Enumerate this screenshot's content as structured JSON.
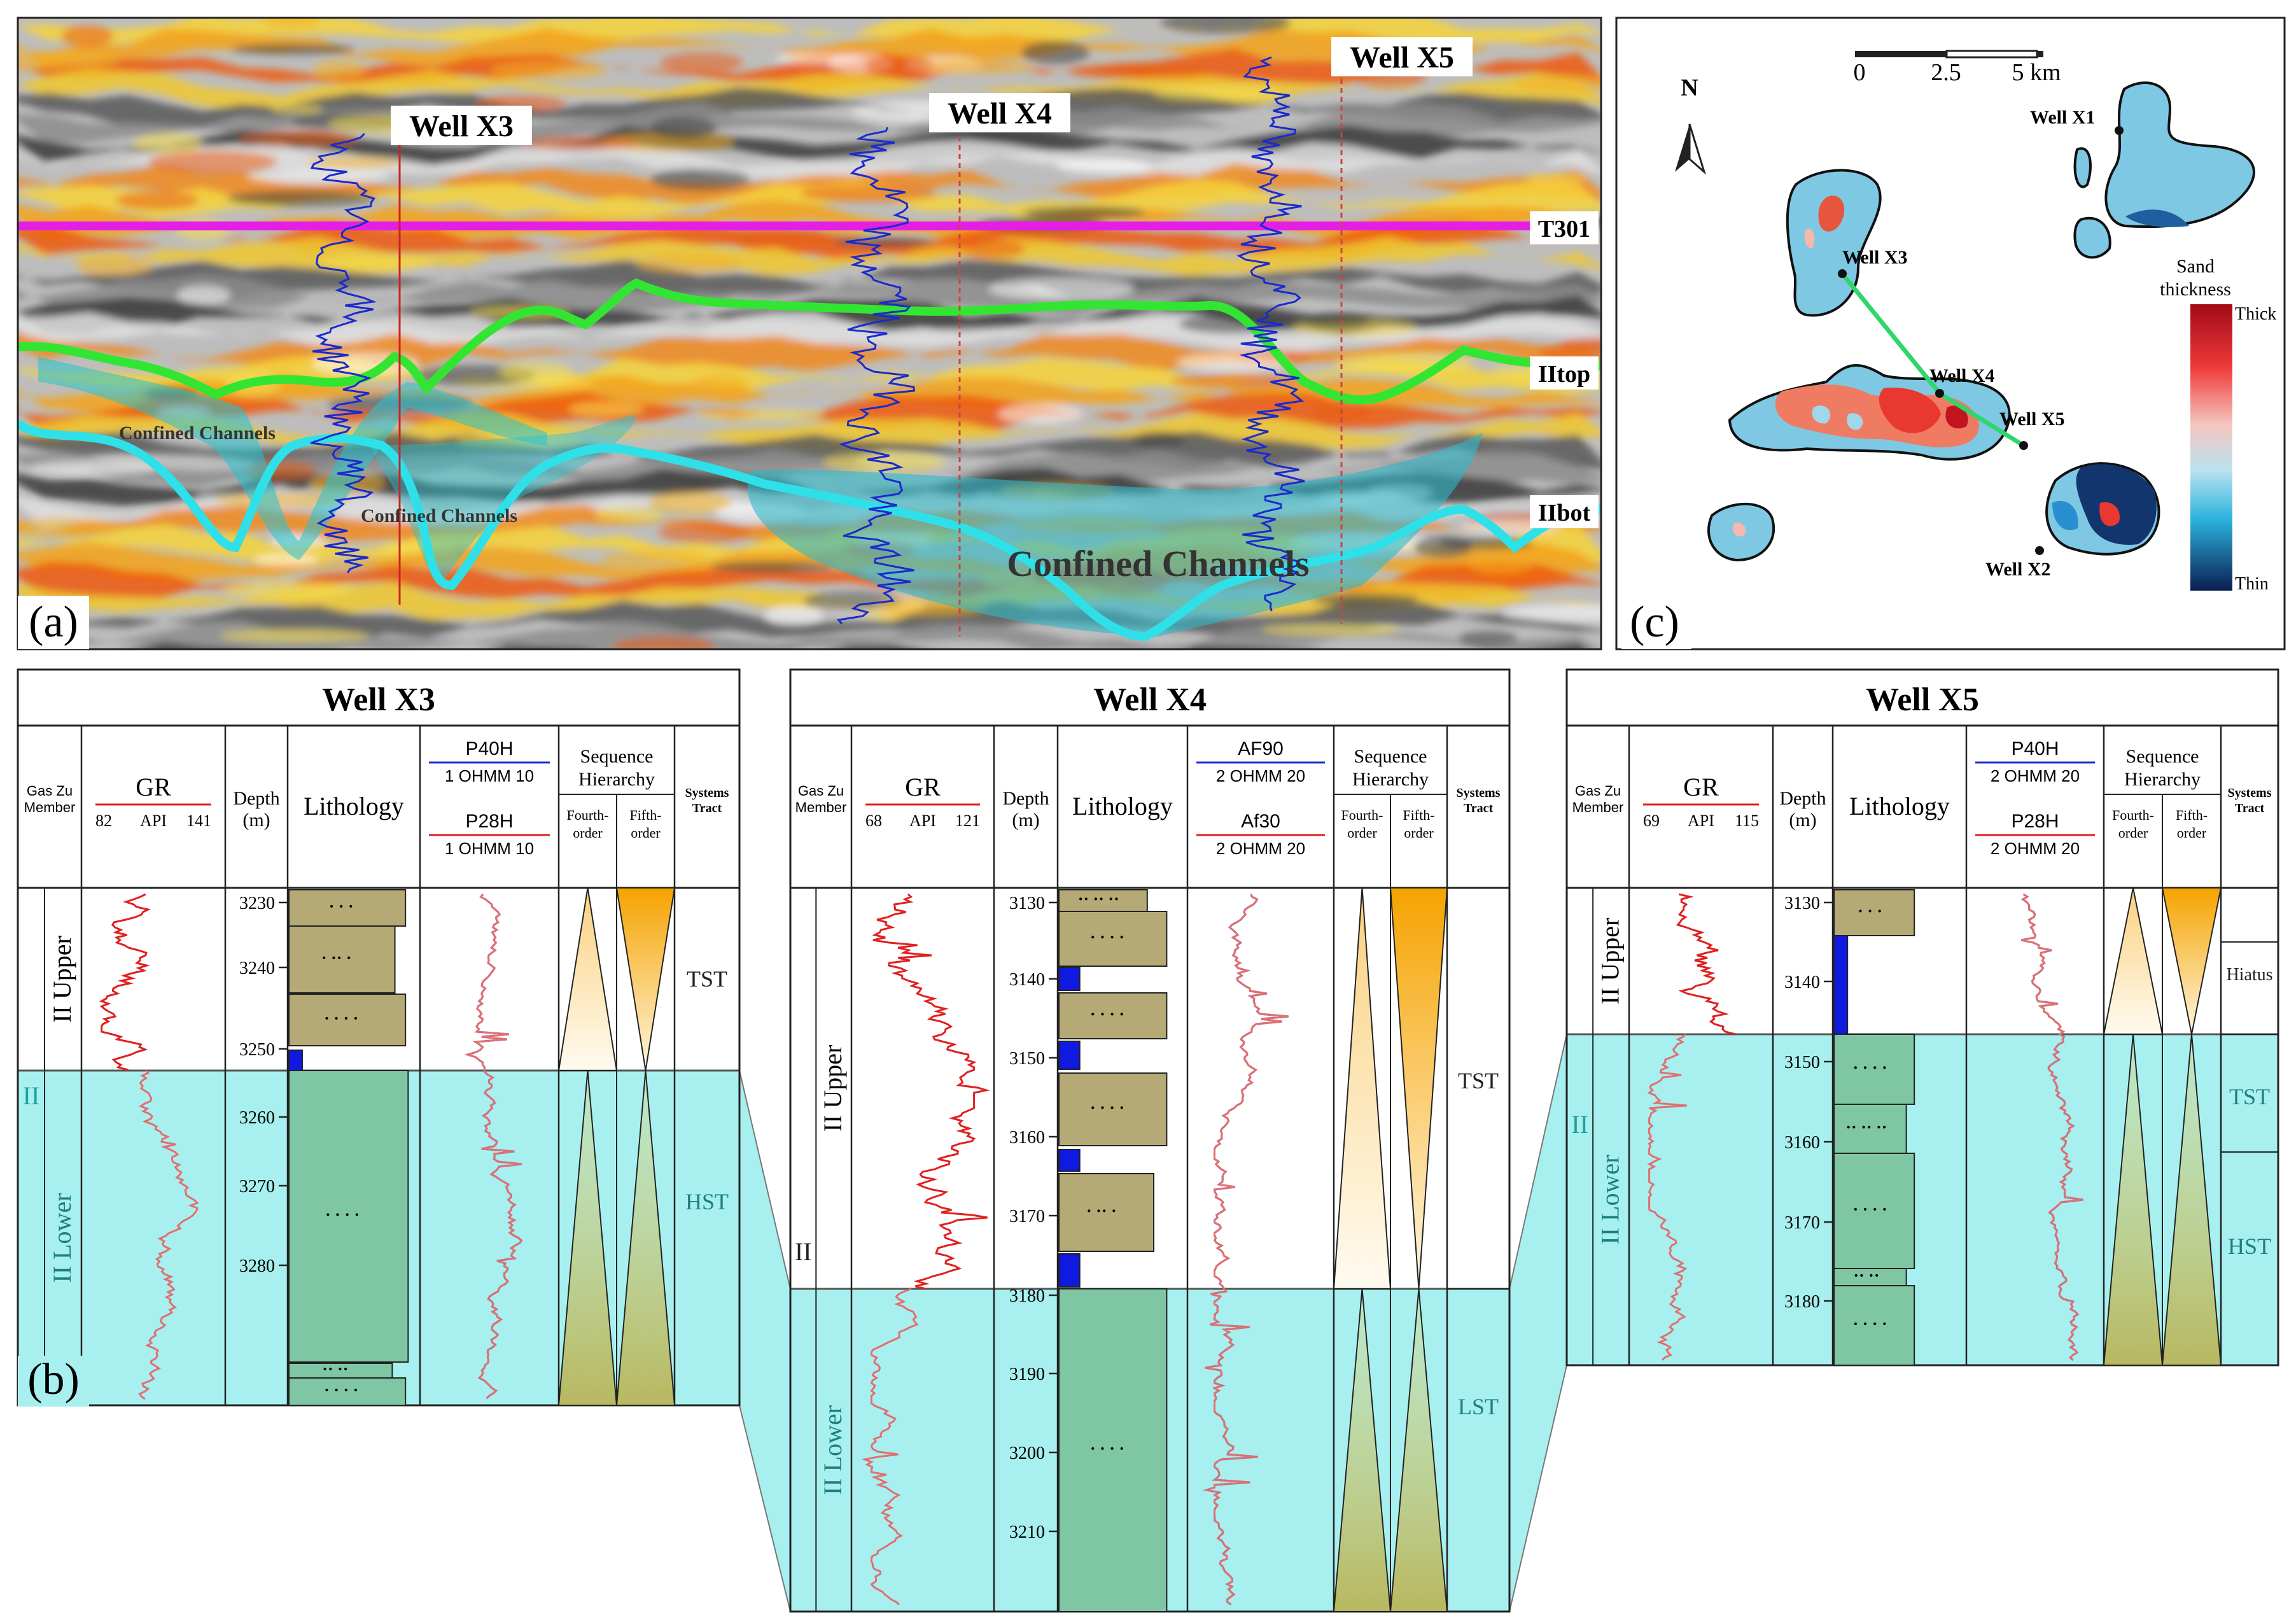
{
  "panel_labels": {
    "a": "(a)",
    "b": "(b)",
    "c": "(c)"
  },
  "seismic": {
    "wells": [
      "Well X3",
      "Well X4",
      "Well X5"
    ],
    "horizons": [
      "T301",
      "IItop",
      "IIbot"
    ],
    "channel_labels": [
      "Confined Channels",
      "Confined Channels",
      "Confined Channels"
    ]
  },
  "map": {
    "north": "N",
    "scale_ticks": [
      "0",
      "2.5",
      "5 km"
    ],
    "wells": [
      "Well X1",
      "Well X2",
      "Well X3",
      "Well X4",
      "Well X5"
    ],
    "legend_title": [
      "Sand",
      "thickness"
    ],
    "legend_high": "Thick",
    "legend_low": "Thin",
    "colors": {
      "thick": "#c8102e",
      "mid": "#bfe3f2",
      "thin": "#0b2a5b",
      "line": "#2fd66b"
    }
  },
  "logs": {
    "common": {
      "member": [
        "Gas Zu",
        "Member"
      ],
      "gr": "GR",
      "depth": [
        "Depth",
        "(m)"
      ],
      "lithology": "Lithology",
      "seq": [
        "Sequence",
        "Hierarchy"
      ],
      "fourth": [
        "Fourth-",
        "order"
      ],
      "fifth": [
        "Fifth-",
        "order"
      ],
      "systems": [
        "Systems",
        "Tract"
      ],
      "res_unit": "OHMM",
      "gr_unit": "API",
      "upper": "II Upper",
      "lower": "II Lower",
      "ii": "II"
    },
    "x3": {
      "title": "Well X3",
      "gr_range": [
        "82",
        "141"
      ],
      "res1": "P40H",
      "res1_range": [
        "1",
        "10"
      ],
      "res2": "P28H",
      "res2_range": [
        "1",
        "10"
      ],
      "depths": [
        "3230",
        "3240",
        "3250",
        "3260",
        "3270",
        "3280"
      ],
      "tracts": [
        "TST",
        "HST"
      ]
    },
    "x4": {
      "title": "Well X4",
      "gr_range": [
        "68",
        "121"
      ],
      "res1": "AF90",
      "res1_range": [
        "2",
        "20"
      ],
      "res2": "Af30",
      "res2_range": [
        "2",
        "20"
      ],
      "depths": [
        "3130",
        "3140",
        "3150",
        "3160",
        "3170",
        "3180",
        "3190",
        "3200",
        "3210"
      ],
      "tracts": [
        "TST",
        "LST"
      ]
    },
    "x5": {
      "title": "Well X5",
      "gr_range": [
        "69",
        "115"
      ],
      "res1": "P40H",
      "res1_range": [
        "2",
        "20"
      ],
      "res2": "P28H",
      "res2_range": [
        "2",
        "20"
      ],
      "depths": [
        "3130",
        "3140",
        "3150",
        "3160",
        "3170",
        "3180"
      ],
      "tracts": [
        "Hiatus",
        "TST",
        "HST"
      ]
    }
  }
}
